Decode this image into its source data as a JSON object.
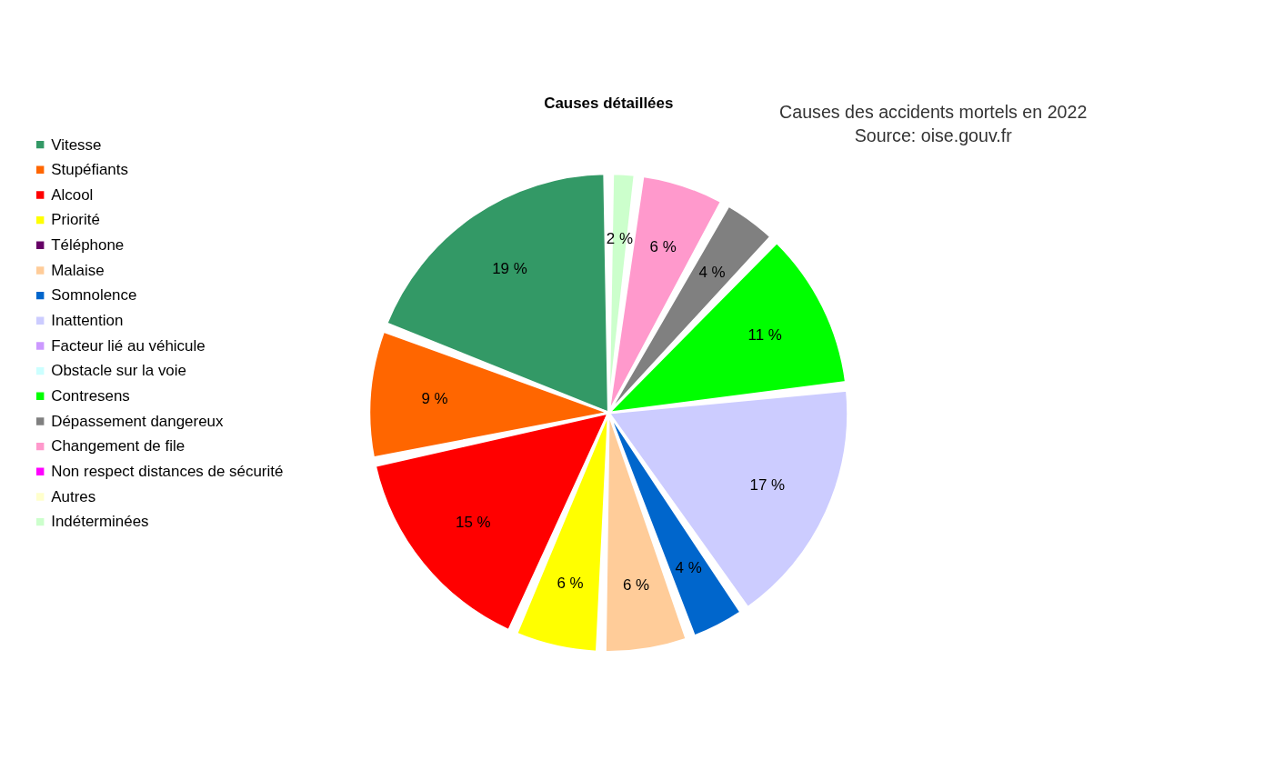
{
  "chart_data": {
    "type": "pie",
    "title": "Causes détaillées",
    "annotations": [
      "Causes des accidents mortels en 2022",
      "Source: oise.gouv.fr"
    ],
    "categories": [
      "Vitesse",
      "Stupéfiants",
      "Alcool",
      "Priorité",
      "Téléphone",
      "Malaise",
      "Somnolence",
      "Inattention",
      "Facteur lié au véhicule",
      "Obstacle sur la voie",
      "Contresens",
      "Dépassement dangereux",
      "Changement de file",
      "Non respect distances de sécurité",
      "Autres",
      "Indéterminées"
    ],
    "values": [
      19,
      9,
      15,
      6,
      0,
      6,
      4,
      17,
      0,
      0,
      11,
      4,
      6,
      0,
      0,
      2
    ],
    "value_labels": [
      "19 %",
      "9 %",
      "15 %",
      "6 %",
      null,
      "6 %",
      "4 %",
      "17 %",
      null,
      null,
      "11 %",
      "4 %",
      "6 %",
      null,
      null,
      "2 %"
    ],
    "colors": [
      "#339966",
      "#ff6600",
      "#ff0000",
      "#ffff00",
      "#660066",
      "#ffcc99",
      "#0066cc",
      "#ccccff",
      "#cc99ff",
      "#ccffff",
      "#00ff00",
      "#808080",
      "#ff99cc",
      "#ff00ff",
      "#ffffcc",
      "#ccffcc"
    ],
    "legend": "left"
  }
}
